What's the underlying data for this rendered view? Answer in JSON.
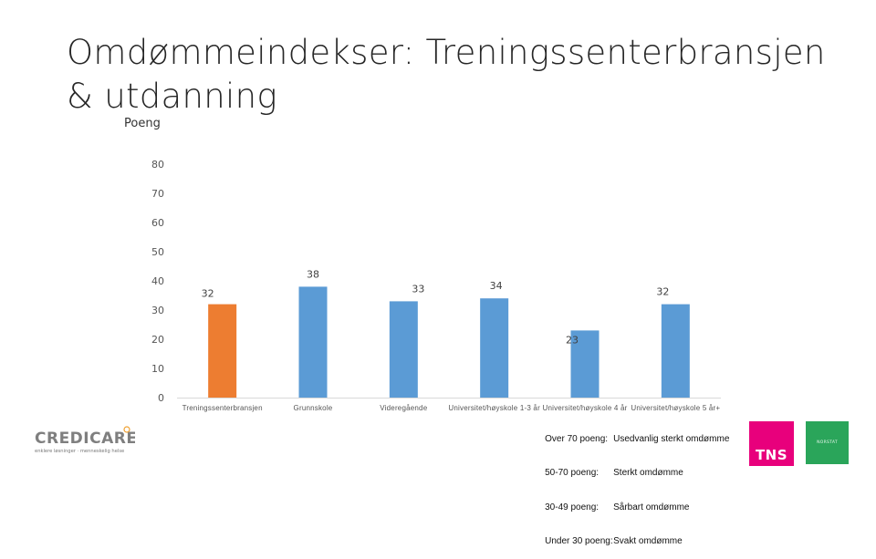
{
  "slide": {
    "title": "Omdømmeindekser: Treningssenterbransjen & utdanning"
  },
  "chart_data": {
    "type": "bar",
    "title": "",
    "xlabel": "",
    "ylabel": "Poeng",
    "ylim": [
      0,
      80
    ],
    "yticks": [
      0,
      10,
      20,
      30,
      40,
      50,
      60,
      70,
      80
    ],
    "grid": false,
    "categories": [
      "Treningssenterbransjen",
      "Grunnskole",
      "Videregående",
      "Universitet/høyskole 1-3 år",
      "Universitet/høyskole 4 år",
      "Universitet/høyskole 5 år+"
    ],
    "values": [
      32,
      38,
      33,
      34,
      23,
      32
    ],
    "highlight_index": 0,
    "colors": {
      "default": "#5b9bd5",
      "highlight": "#ed7d31"
    }
  },
  "legend": {
    "rows": [
      {
        "range": "Over 70 poeng:",
        "meaning": "Usedvanlig sterkt omdømme"
      },
      {
        "range": "50-70 poeng:",
        "meaning": "Sterkt omdømme"
      },
      {
        "range": "30-49 poeng:",
        "meaning": "Sårbart omdømme"
      },
      {
        "range": "Under 30 poeng:",
        "meaning": "Svakt omdømme"
      }
    ]
  },
  "logos": {
    "credicare_name": "CREDICARE",
    "credicare_tagline": "enklere løsninger · menneskelig helse",
    "tns": "TNS",
    "green": "NORSTAT"
  }
}
